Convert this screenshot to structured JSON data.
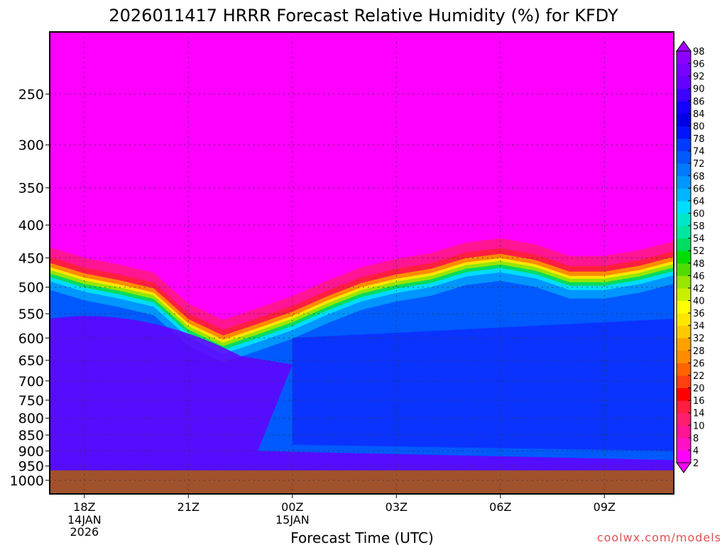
{
  "chart_data": {
    "type": "heatmap",
    "title": "2026011417 HRRR Forecast Relative Humidity (%) for KFDY",
    "xlabel": "Forecast Time (UTC)",
    "ylabel": "",
    "credit": "coolwx.com/models",
    "x_range_hours": [
      -1,
      17
    ],
    "y_range_mb": [
      200,
      1050
    ],
    "y_scale": "log-pressure",
    "grid": true,
    "legend": "right",
    "x_ticks": [
      {
        "hour": 0,
        "label": "18Z",
        "sub": [
          "14JAN",
          "2026"
        ]
      },
      {
        "hour": 3,
        "label": "21Z",
        "sub": []
      },
      {
        "hour": 6,
        "label": "00Z",
        "sub": [
          "15JAN"
        ]
      },
      {
        "hour": 9,
        "label": "03Z",
        "sub": []
      },
      {
        "hour": 12,
        "label": "06Z",
        "sub": []
      },
      {
        "hour": 15,
        "label": "09Z",
        "sub": []
      }
    ],
    "y_ticks": [
      250,
      300,
      350,
      400,
      450,
      500,
      550,
      600,
      650,
      700,
      750,
      800,
      850,
      900,
      950,
      1000
    ],
    "colorbar_levels": [
      2,
      4,
      8,
      10,
      14,
      16,
      20,
      22,
      26,
      28,
      32,
      34,
      36,
      40,
      42,
      46,
      48,
      52,
      54,
      58,
      60,
      64,
      66,
      68,
      72,
      74,
      78,
      80,
      84,
      86,
      90,
      92,
      96,
      98
    ],
    "colorbar_colors": [
      "#ff00ff",
      "#ff10c8",
      "#ff1493",
      "#ff1e6e",
      "#ff1e40",
      "#ff0000",
      "#ff4010",
      "#ff6400",
      "#ff8c00",
      "#ffa000",
      "#ffc800",
      "#ffe600",
      "#ffff00",
      "#c8f000",
      "#96e600",
      "#50dc00",
      "#00dc00",
      "#00dc60",
      "#00e6a0",
      "#00e6c8",
      "#00dcff",
      "#00b4ff",
      "#0096ff",
      "#0078ff",
      "#005aff",
      "#003cff",
      "#0014ff",
      "#0000e6",
      "#1400ff",
      "#3c00ff",
      "#6400ff",
      "#7800ff",
      "#8c00ff",
      "#a000ff"
    ],
    "moisture_top_boundary": [
      {
        "hour": -1,
        "mb": 470
      },
      {
        "hour": 0,
        "mb": 488
      },
      {
        "hour": 1,
        "mb": 500
      },
      {
        "hour": 2,
        "mb": 515
      },
      {
        "hour": 3,
        "mb": 575
      },
      {
        "hour": 4,
        "mb": 610
      },
      {
        "hour": 5,
        "mb": 585
      },
      {
        "hour": 6,
        "mb": 560
      },
      {
        "hour": 7,
        "mb": 530
      },
      {
        "hour": 8,
        "mb": 505
      },
      {
        "hour": 9,
        "mb": 490
      },
      {
        "hour": 10,
        "mb": 480
      },
      {
        "hour": 11,
        "mb": 462
      },
      {
        "hour": 12,
        "mb": 455
      },
      {
        "hour": 13,
        "mb": 465
      },
      {
        "hour": 14,
        "mb": 485
      },
      {
        "hour": 15,
        "mb": 485
      },
      {
        "hour": 16,
        "mb": 475
      },
      {
        "hour": 17,
        "mb": 460
      }
    ],
    "surface_pressure_mb": 965
  }
}
